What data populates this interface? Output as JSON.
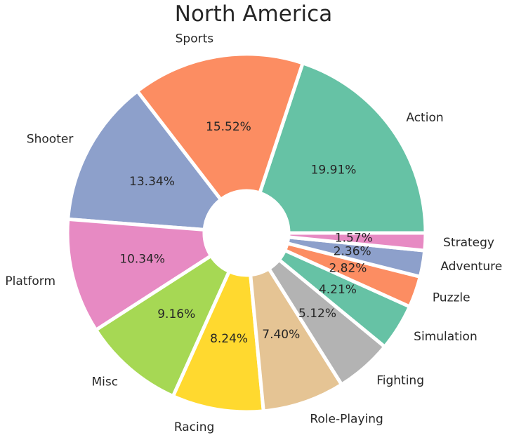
{
  "chart_data": {
    "type": "pie",
    "title": "North America",
    "categories": [
      "Action",
      "Sports",
      "Shooter",
      "Platform",
      "Misc",
      "Racing",
      "Role-Playing",
      "Fighting",
      "Simulation",
      "Puzzle",
      "Adventure",
      "Strategy"
    ],
    "values": [
      19.91,
      15.52,
      13.34,
      10.34,
      9.16,
      8.24,
      7.4,
      5.12,
      4.21,
      2.82,
      2.36,
      1.57
    ],
    "value_labels": [
      "19.91%",
      "15.52%",
      "13.34%",
      "10.34%",
      "9.16%",
      "8.24%",
      "7.40%",
      "5.12%",
      "4.21%",
      "2.82%",
      "2.36%",
      "1.57%"
    ],
    "colors": [
      "#66c2a5",
      "#fc8d62",
      "#8da0cb",
      "#e78ac3",
      "#a6d854",
      "#ffd92f",
      "#e5c494",
      "#b3b3b3",
      "#66c2a5",
      "#fc8d62",
      "#8da0cb",
      "#e78ac3"
    ],
    "donut": true,
    "start_angle_deg": 0,
    "direction": "counterclockwise",
    "legend": "none"
  }
}
